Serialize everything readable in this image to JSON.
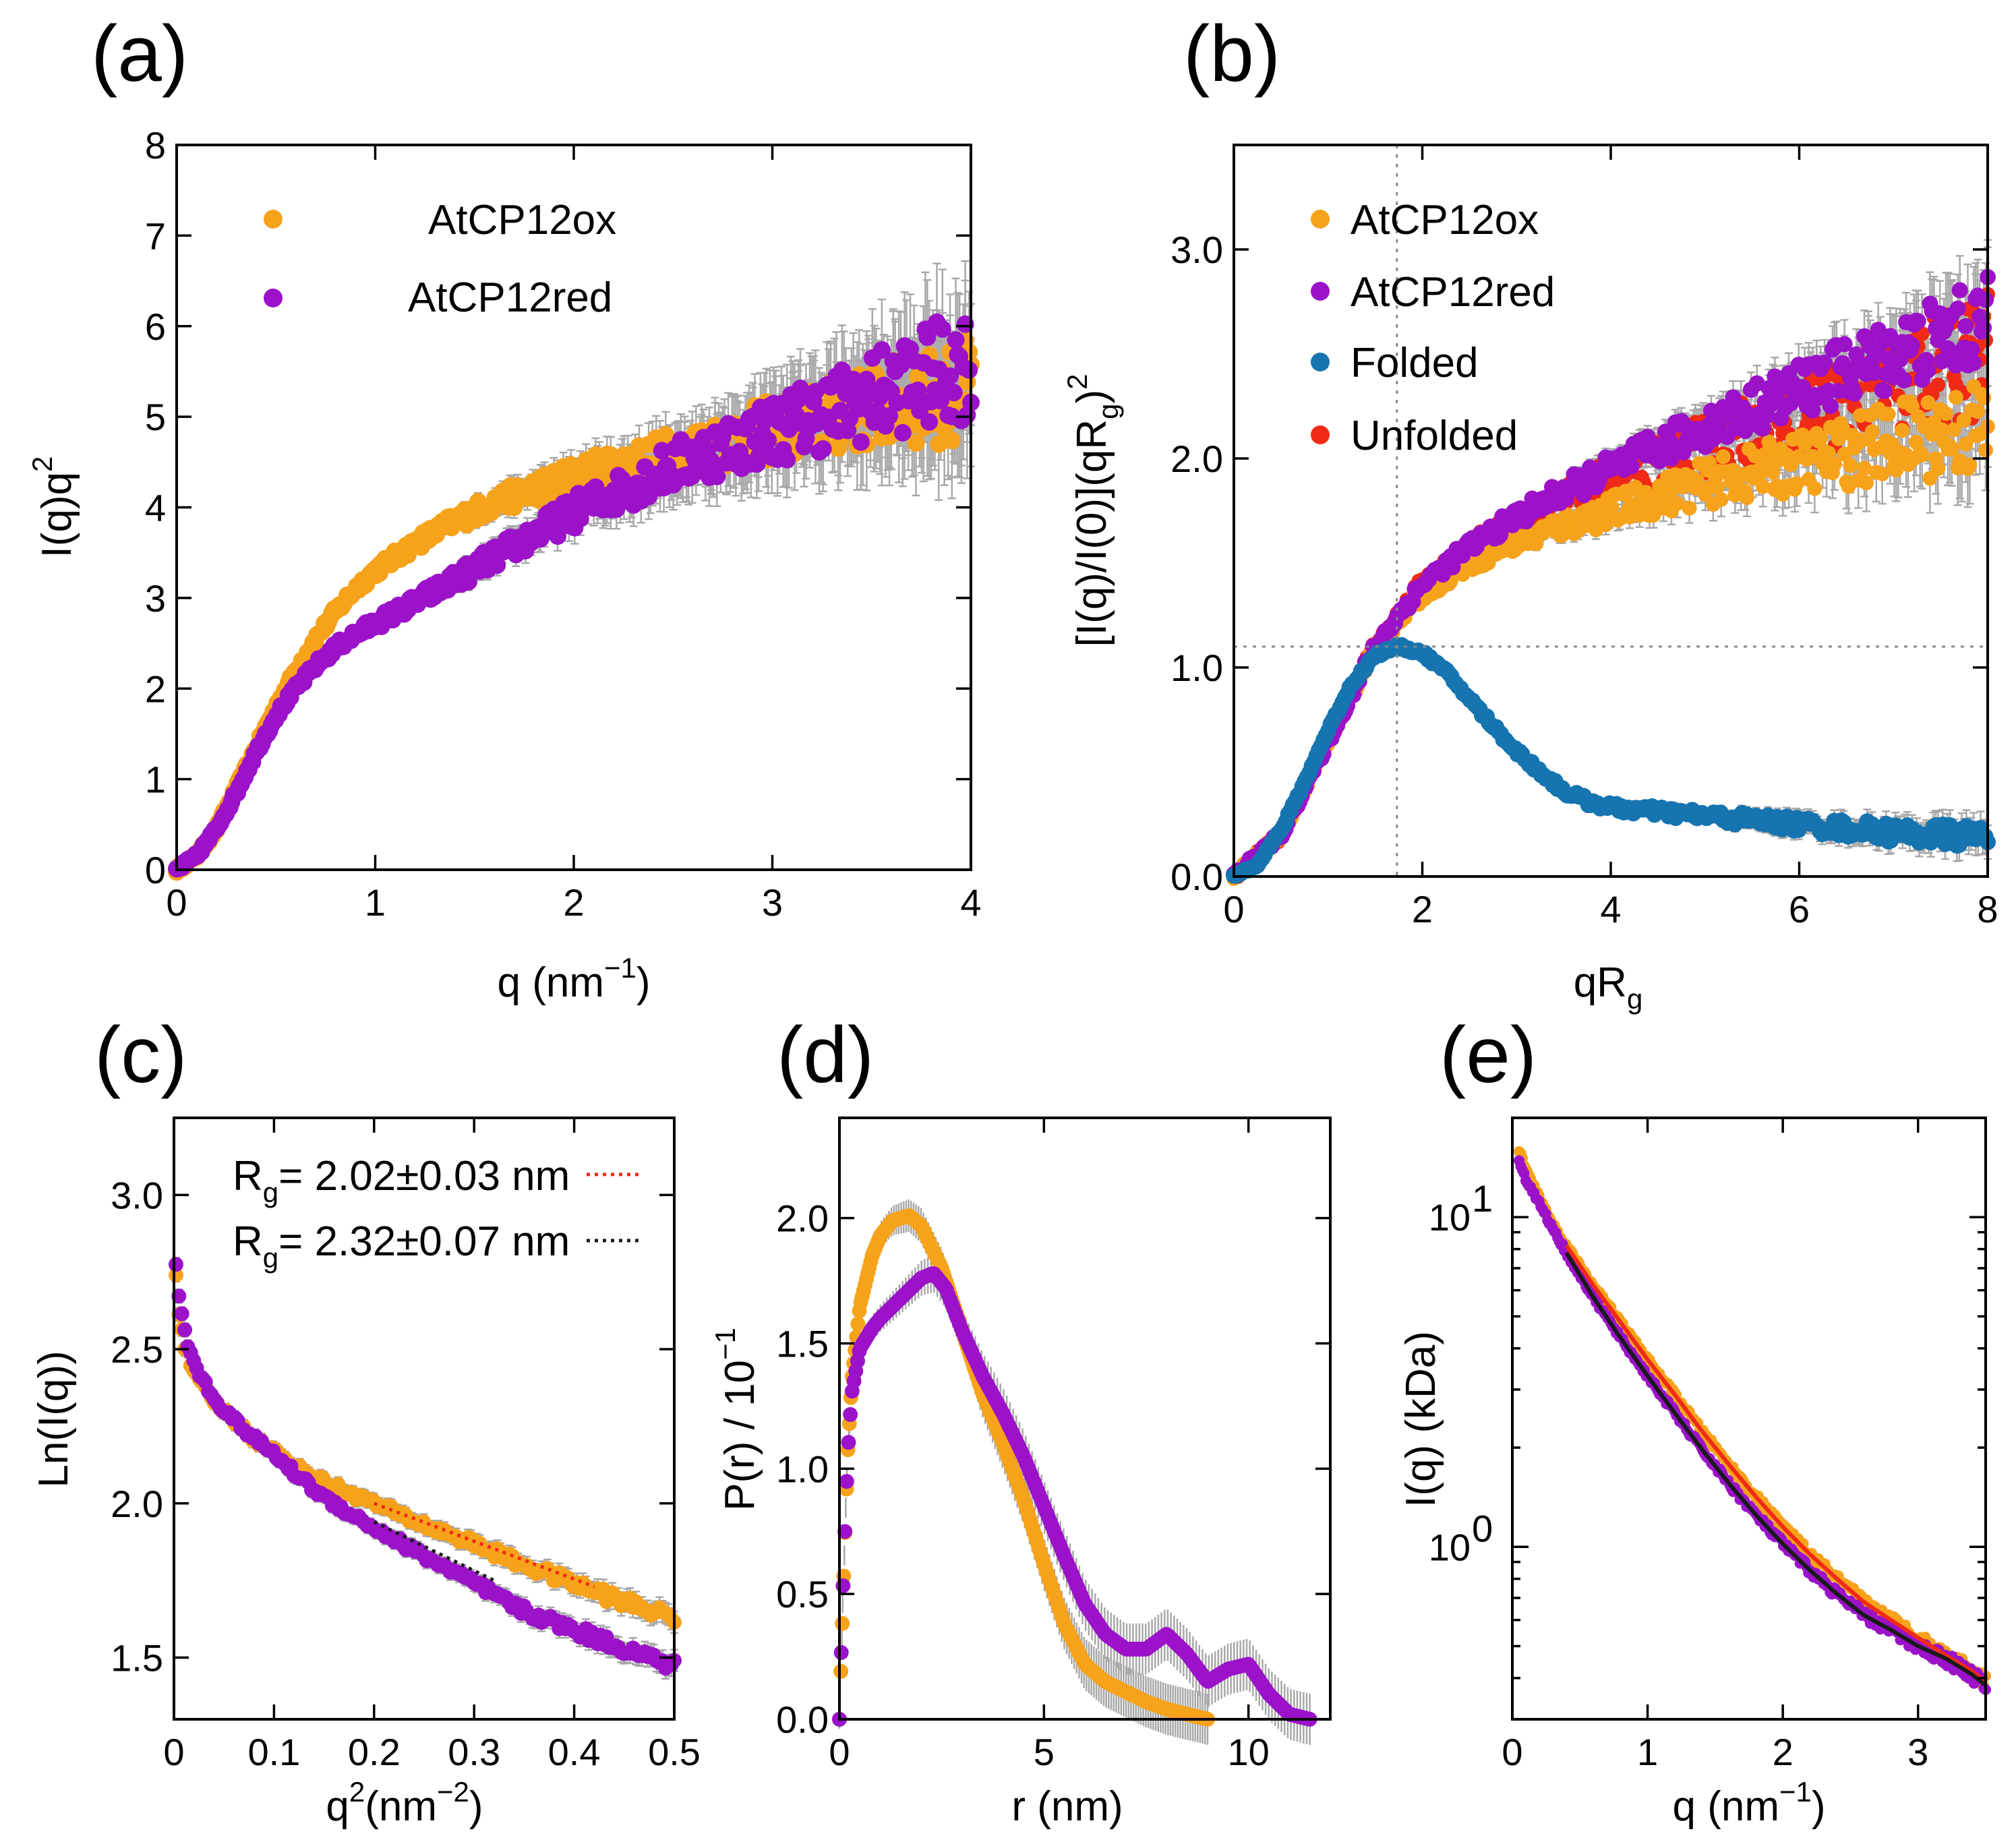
{
  "colors": {
    "ox": "#f7a21b",
    "red": "#9b12c9",
    "folded": "#1674b0",
    "unfolded": "#f02a16",
    "fit_black": "#1a1a1a",
    "err": "#a8a8a8"
  },
  "chart_data": [
    {
      "id": "a",
      "panel_label": "(a)",
      "type": "scatter",
      "xlabel_main": "q (nm",
      "xlabel_sup": "−1",
      "xlabel_end": ")",
      "ylabel_main": "I(q)q",
      "ylabel_sup": "2",
      "xlim": [
        0,
        4
      ],
      "ylim": [
        0,
        8
      ],
      "xticks": [
        0,
        1,
        2,
        3,
        4
      ],
      "xtick_labels": [
        "0",
        "1",
        "2",
        "3",
        "4"
      ],
      "yticks": [
        0,
        1,
        2,
        3,
        4,
        5,
        6,
        7,
        8
      ],
      "ytick_labels": [
        "0",
        "1",
        "2",
        "3",
        "4",
        "5",
        "6",
        "7",
        "8"
      ],
      "legend": [
        {
          "label": "AtCP12ox",
          "color": "#f7a21b"
        },
        {
          "label": "AtCP12red",
          "color": "#9b12c9"
        }
      ],
      "series": [
        {
          "name": "AtCP12ox",
          "color": "#f7a21b",
          "x": [
            0,
            0.1,
            0.2,
            0.3,
            0.4,
            0.5,
            0.6,
            0.7,
            0.8,
            0.9,
            1.0,
            1.2,
            1.4,
            1.6,
            1.8,
            2.0,
            2.2,
            2.4,
            2.6,
            2.8,
            3.0,
            3.2,
            3.4,
            3.6,
            3.8,
            4.0
          ],
          "y": [
            0,
            0.15,
            0.45,
            0.9,
            1.35,
            1.8,
            2.2,
            2.55,
            2.85,
            3.1,
            3.3,
            3.6,
            3.85,
            4.05,
            4.2,
            4.35,
            4.45,
            4.55,
            4.65,
            4.75,
            4.85,
            4.95,
            5.05,
            5.15,
            5.2,
            5.3
          ]
        },
        {
          "name": "AtCP12red",
          "color": "#9b12c9",
          "x": [
            0,
            0.1,
            0.2,
            0.3,
            0.4,
            0.5,
            0.6,
            0.7,
            0.8,
            0.9,
            1.0,
            1.2,
            1.4,
            1.6,
            1.8,
            2.0,
            2.2,
            2.4,
            2.6,
            2.8,
            3.0,
            3.2,
            3.4,
            3.6,
            3.8,
            4.0
          ],
          "y": [
            0,
            0.15,
            0.45,
            0.85,
            1.3,
            1.7,
            2.0,
            2.25,
            2.45,
            2.6,
            2.72,
            2.95,
            3.2,
            3.45,
            3.7,
            3.95,
            4.15,
            4.35,
            4.55,
            4.7,
            4.85,
            5.0,
            5.15,
            5.3,
            5.45,
            5.6
          ]
        }
      ]
    },
    {
      "id": "b",
      "panel_label": "(b)",
      "type": "scatter",
      "xlabel_main": "qR",
      "xlabel_sub": "g",
      "ylabel_text": "[I(q)/I(0)](qR",
      "ylabel_sub": "g",
      "ylabel_close": ")",
      "ylabel_sup": "2",
      "xlim": [
        0,
        8
      ],
      "ylim": [
        0,
        3.5
      ],
      "xticks": [
        0,
        2,
        4,
        6,
        8
      ],
      "xtick_labels": [
        "0",
        "2",
        "4",
        "6",
        "8"
      ],
      "yticks": [
        0,
        1,
        2,
        3
      ],
      "ytick_labels": [
        "0.0",
        "1.0",
        "2.0",
        "3.0"
      ],
      "reference_lines": {
        "x": 1.73,
        "y": 1.1
      },
      "legend": [
        {
          "label": "AtCP12ox",
          "color": "#f7a21b"
        },
        {
          "label": "AtCP12red",
          "color": "#9b12c9"
        },
        {
          "label": "Folded",
          "color": "#1674b0"
        },
        {
          "label": "Unfolded",
          "color": "#f02a16"
        }
      ],
      "series": [
        {
          "name": "Unfolded",
          "color": "#f02a16",
          "x": [
            0,
            0.5,
            1.0,
            1.5,
            2.0,
            2.5,
            3.0,
            3.5,
            4.0,
            4.5,
            5.0,
            5.5,
            6.0,
            6.5,
            7.0,
            7.5,
            8.0
          ],
          "y": [
            0,
            0.2,
            0.65,
            1.1,
            1.4,
            1.57,
            1.7,
            1.8,
            1.9,
            1.98,
            2.06,
            2.14,
            2.2,
            2.28,
            2.35,
            2.42,
            2.5
          ]
        },
        {
          "name": "AtCP12ox",
          "color": "#f7a21b",
          "x": [
            0,
            0.5,
            1.0,
            1.5,
            2.0,
            2.5,
            3.0,
            3.5,
            4.0,
            4.5,
            5.0,
            5.5,
            6.0,
            6.5,
            7.0,
            7.5,
            8.0
          ],
          "y": [
            0,
            0.2,
            0.65,
            1.1,
            1.35,
            1.5,
            1.6,
            1.68,
            1.75,
            1.82,
            1.88,
            1.93,
            1.98,
            2.03,
            2.08,
            2.12,
            2.15
          ]
        },
        {
          "name": "AtCP12red",
          "color": "#9b12c9",
          "x": [
            0,
            0.5,
            1.0,
            1.5,
            2.0,
            2.5,
            3.0,
            3.5,
            4.0,
            4.5,
            5.0,
            5.5,
            6.0,
            6.5,
            7.0,
            7.5,
            8.0
          ],
          "y": [
            0,
            0.2,
            0.65,
            1.1,
            1.4,
            1.58,
            1.72,
            1.84,
            1.95,
            2.05,
            2.15,
            2.24,
            2.33,
            2.42,
            2.5,
            2.58,
            2.65
          ]
        },
        {
          "name": "Folded",
          "color": "#1674b0",
          "x": [
            0,
            0.25,
            0.5,
            0.75,
            1.0,
            1.25,
            1.5,
            1.75,
            2.0,
            2.25,
            2.5,
            2.75,
            3.0,
            3.25,
            3.5,
            3.75,
            4.0,
            4.5,
            5.0,
            5.5,
            6.0,
            6.5,
            7.0,
            7.5,
            8.0
          ],
          "y": [
            0,
            0.06,
            0.22,
            0.45,
            0.7,
            0.92,
            1.06,
            1.1,
            1.07,
            0.98,
            0.85,
            0.72,
            0.6,
            0.5,
            0.41,
            0.36,
            0.33,
            0.31,
            0.29,
            0.27,
            0.25,
            0.23,
            0.21,
            0.2,
            0.19
          ]
        }
      ]
    },
    {
      "id": "c",
      "panel_label": "(c)",
      "type": "scatter",
      "xlabel_main": "q",
      "xlabel_sup": "2",
      "xlabel_mid": "(nm",
      "xlabel_sup2": "−2",
      "xlabel_end": ")",
      "ylabel_main": "Ln(I(q))",
      "xlim": [
        0,
        0.5
      ],
      "ylim": [
        1.3,
        3.25
      ],
      "xticks": [
        0,
        0.1,
        0.2,
        0.3,
        0.4,
        0.5
      ],
      "xtick_labels": [
        "0",
        "0.1",
        "0.2",
        "0.3",
        "0.4",
        "0.5"
      ],
      "yticks": [
        1.5,
        2.0,
        2.5,
        3.0
      ],
      "ytick_labels": [
        "1.5",
        "2.0",
        "2.5",
        "3.0"
      ],
      "annotations": [
        {
          "prefix": "R",
          "sub": "g",
          "text": "= 2.02±0.03 nm",
          "line_color": "#f02a16"
        },
        {
          "prefix": "R",
          "sub": "g",
          "text": "= 2.32±0.07 nm",
          "line_color": "#1a1a1a"
        }
      ],
      "series": [
        {
          "name": "AtCP12ox",
          "color": "#f7a21b",
          "x": [
            0.002,
            0.005,
            0.01,
            0.02,
            0.04,
            0.06,
            0.08,
            0.1,
            0.12,
            0.15,
            0.2,
            0.25,
            0.3,
            0.35,
            0.4,
            0.45,
            0.5
          ],
          "y": [
            2.75,
            2.62,
            2.52,
            2.42,
            2.33,
            2.27,
            2.21,
            2.17,
            2.12,
            2.07,
            2.0,
            1.93,
            1.87,
            1.8,
            1.74,
            1.68,
            1.63
          ]
        },
        {
          "name": "AtCP12red",
          "color": "#9b12c9",
          "x": [
            0.002,
            0.005,
            0.01,
            0.02,
            0.04,
            0.06,
            0.08,
            0.1,
            0.12,
            0.15,
            0.2,
            0.25,
            0.3,
            0.35,
            0.4,
            0.45,
            0.5
          ],
          "y": [
            2.78,
            2.68,
            2.56,
            2.45,
            2.34,
            2.27,
            2.21,
            2.16,
            2.1,
            2.02,
            1.92,
            1.83,
            1.74,
            1.65,
            1.59,
            1.53,
            1.47
          ]
        },
        {
          "name": "fit ox",
          "color": "#f02a16",
          "style": "dotted",
          "x": [
            0.2,
            0.42
          ],
          "y": [
            2.0,
            1.73
          ]
        },
        {
          "name": "fit red",
          "color": "#1a1a1a",
          "style": "dotted",
          "x": [
            0.2,
            0.32
          ],
          "y": [
            1.94,
            1.75
          ]
        }
      ]
    },
    {
      "id": "d",
      "panel_label": "(d)",
      "type": "line",
      "xlabel_main": "r (nm)",
      "ylabel_main": "P(r) / 10",
      "ylabel_sup": "−1",
      "xlim": [
        0,
        12
      ],
      "ylim": [
        0,
        2.4
      ],
      "xticks": [
        0,
        5,
        10
      ],
      "xtick_labels": [
        "0",
        "5",
        "10"
      ],
      "yticks": [
        0,
        0.5,
        1.0,
        1.5,
        2.0
      ],
      "ytick_labels": [
        "0.0",
        "0.5",
        "1.0",
        "1.5",
        "2.0"
      ],
      "series": [
        {
          "name": "AtCP12ox",
          "color": "#f7a21b",
          "x": [
            0,
            0.1,
            0.2,
            0.3,
            0.5,
            0.8,
            1.0,
            1.3,
            1.7,
            2.0,
            2.5,
            3.0,
            3.5,
            4.0,
            4.5,
            5.0,
            5.5,
            6.0,
            6.5,
            7.0,
            7.5,
            8.0,
            8.5,
            9.0
          ],
          "y": [
            0,
            0.55,
            1.05,
            1.35,
            1.65,
            1.85,
            1.93,
            1.99,
            2.01,
            1.97,
            1.8,
            1.55,
            1.3,
            1.1,
            0.88,
            0.62,
            0.38,
            0.22,
            0.15,
            0.11,
            0.07,
            0.04,
            0.02,
            0
          ]
        },
        {
          "name": "AtCP12red",
          "color": "#9b12c9",
          "x": [
            0,
            0.1,
            0.2,
            0.3,
            0.5,
            0.8,
            1.0,
            1.5,
            2.0,
            2.3,
            2.6,
            3.0,
            3.5,
            4.0,
            4.5,
            5.0,
            5.5,
            6.0,
            6.5,
            7.0,
            7.5,
            8.0,
            8.5,
            9.0,
            9.5,
            10.0,
            10.5,
            11.0,
            11.5
          ],
          "y": [
            0,
            0.6,
            1.05,
            1.3,
            1.48,
            1.56,
            1.6,
            1.68,
            1.76,
            1.78,
            1.72,
            1.55,
            1.37,
            1.22,
            1.05,
            0.85,
            0.65,
            0.46,
            0.34,
            0.28,
            0.28,
            0.34,
            0.26,
            0.15,
            0.2,
            0.22,
            0.1,
            0.02,
            0
          ]
        }
      ]
    },
    {
      "id": "e",
      "panel_label": "(e)",
      "type": "scatter",
      "yscale": "log",
      "xlabel_main": "q (nm",
      "xlabel_sup": "−1",
      "xlabel_end": ")",
      "ylabel_main": "I(q) (kDa)",
      "xlim": [
        0,
        3.5
      ],
      "ylim": [
        0.3,
        20
      ],
      "xticks": [
        0,
        1,
        2,
        3
      ],
      "xtick_labels": [
        "0",
        "1",
        "2",
        "3"
      ],
      "yticks_major": [
        1,
        10
      ],
      "ytick_bases": [
        "10",
        "10"
      ],
      "ytick_exps": [
        "0",
        "1"
      ],
      "series": [
        {
          "name": "AtCP12ox",
          "color": "#f7a21b",
          "x": [
            0.05,
            0.1,
            0.2,
            0.3,
            0.4,
            0.6,
            0.8,
            1.0,
            1.2,
            1.4,
            1.6,
            1.8,
            2.0,
            2.2,
            2.4,
            2.6,
            2.8,
            3.0,
            3.2,
            3.4,
            3.5
          ],
          "y": [
            16,
            14,
            11.5,
            9.5,
            8.2,
            6.2,
            4.8,
            3.7,
            2.9,
            2.25,
            1.78,
            1.42,
            1.15,
            0.95,
            0.8,
            0.68,
            0.6,
            0.53,
            0.47,
            0.42,
            0.39
          ]
        },
        {
          "name": "AtCP12red",
          "color": "#9b12c9",
          "x": [
            0.05,
            0.1,
            0.2,
            0.3,
            0.4,
            0.6,
            0.8,
            1.0,
            1.2,
            1.4,
            1.6,
            1.8,
            2.0,
            2.2,
            2.4,
            2.6,
            2.8,
            3.0,
            3.2,
            3.4,
            3.5
          ],
          "y": [
            15,
            13,
            11,
            9.2,
            7.8,
            5.7,
            4.3,
            3.3,
            2.55,
            1.98,
            1.56,
            1.25,
            1.02,
            0.85,
            0.72,
            0.62,
            0.56,
            0.5,
            0.46,
            0.41,
            0.38
          ]
        },
        {
          "name": "fit ox",
          "color": "#f02a16",
          "style": "solid",
          "x": [
            0.4,
            0.6,
            0.8,
            1.0,
            1.2,
            1.4,
            1.6,
            1.8,
            2.0,
            2.2,
            2.4,
            2.6,
            2.8,
            3.0,
            3.2,
            3.4,
            3.5
          ],
          "y": [
            8.2,
            6.2,
            4.8,
            3.7,
            2.9,
            2.25,
            1.78,
            1.42,
            1.15,
            0.95,
            0.8,
            0.68,
            0.6,
            0.53,
            0.47,
            0.42,
            0.39
          ]
        },
        {
          "name": "fit red",
          "color": "#1a1a1a",
          "style": "solid",
          "x": [
            0.4,
            0.6,
            0.8,
            1.0,
            1.2,
            1.4,
            1.6,
            1.8,
            2.0,
            2.2,
            2.4,
            2.6,
            2.8,
            3.0,
            3.2,
            3.4,
            3.5
          ],
          "y": [
            7.8,
            5.7,
            4.3,
            3.3,
            2.55,
            1.98,
            1.56,
            1.25,
            1.02,
            0.85,
            0.72,
            0.62,
            0.56,
            0.5,
            0.46,
            0.41,
            0.38
          ]
        }
      ]
    }
  ]
}
